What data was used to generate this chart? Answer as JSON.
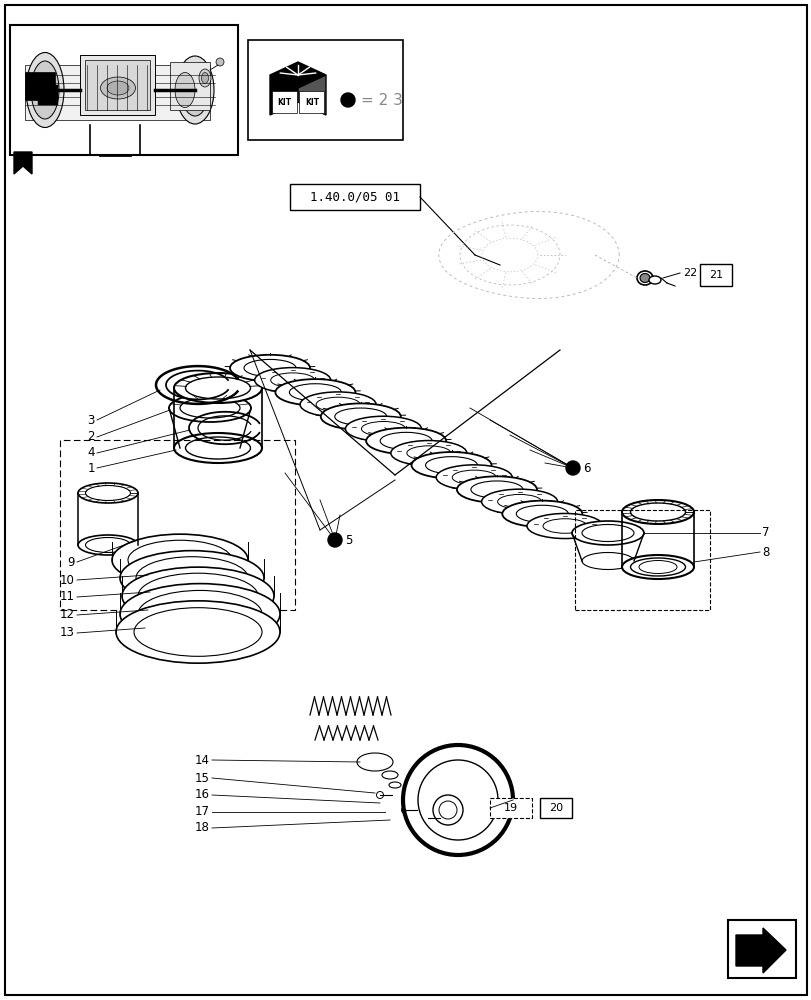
{
  "bg_color": "#ffffff",
  "line_color": "#000000",
  "gray_color": "#aaaaaa",
  "page_width": 8.12,
  "page_height": 10.0,
  "ref_label": "1.40.0/05 01",
  "kit_eq_label": "= 2 3",
  "parts_label_left": [
    "3",
    "2",
    "4",
    "1"
  ],
  "parts_label_right": [
    "7",
    "8"
  ],
  "parts_label_lower_left": [
    "9",
    "10",
    "11",
    "12",
    "13"
  ],
  "parts_label_lower_center": [
    "14",
    "15",
    "16",
    "17",
    "18"
  ],
  "bullet5_label": "5",
  "bullet6_label": "6",
  "label19": "19",
  "label20": "20",
  "label21": "21",
  "label22": "22"
}
